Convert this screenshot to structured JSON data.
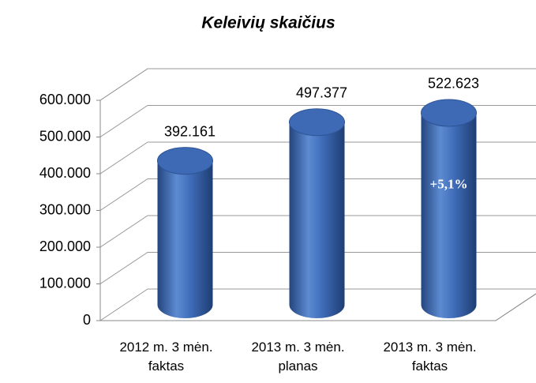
{
  "chart_data": {
    "type": "bar3d",
    "title": "Keleivių skaičius",
    "categories": [
      "2012 m. 3 mėn. faktas",
      "2013 m. 3 mėn. planas",
      "2013 m. 3 mėn. faktas"
    ],
    "values": [
      392161,
      497377,
      522623
    ],
    "value_labels": [
      "392.161",
      "497.377",
      "522.623"
    ],
    "color": "#3a66b0",
    "annotations": [
      {
        "text": "+5,1%",
        "category": 2
      }
    ],
    "ylim": [
      0,
      600000
    ],
    "yticks": [
      0,
      {
        "value": 100000,
        "label": "100.000"
      },
      {
        "value": 200000,
        "label": "200.000"
      },
      {
        "value": 300000,
        "label": "300.000"
      },
      {
        "value": 400000,
        "label": "400.000"
      },
      {
        "value": 500000,
        "label": "500.000"
      },
      {
        "value": 600000,
        "label": "600.000"
      }
    ],
    "grid": true
  }
}
